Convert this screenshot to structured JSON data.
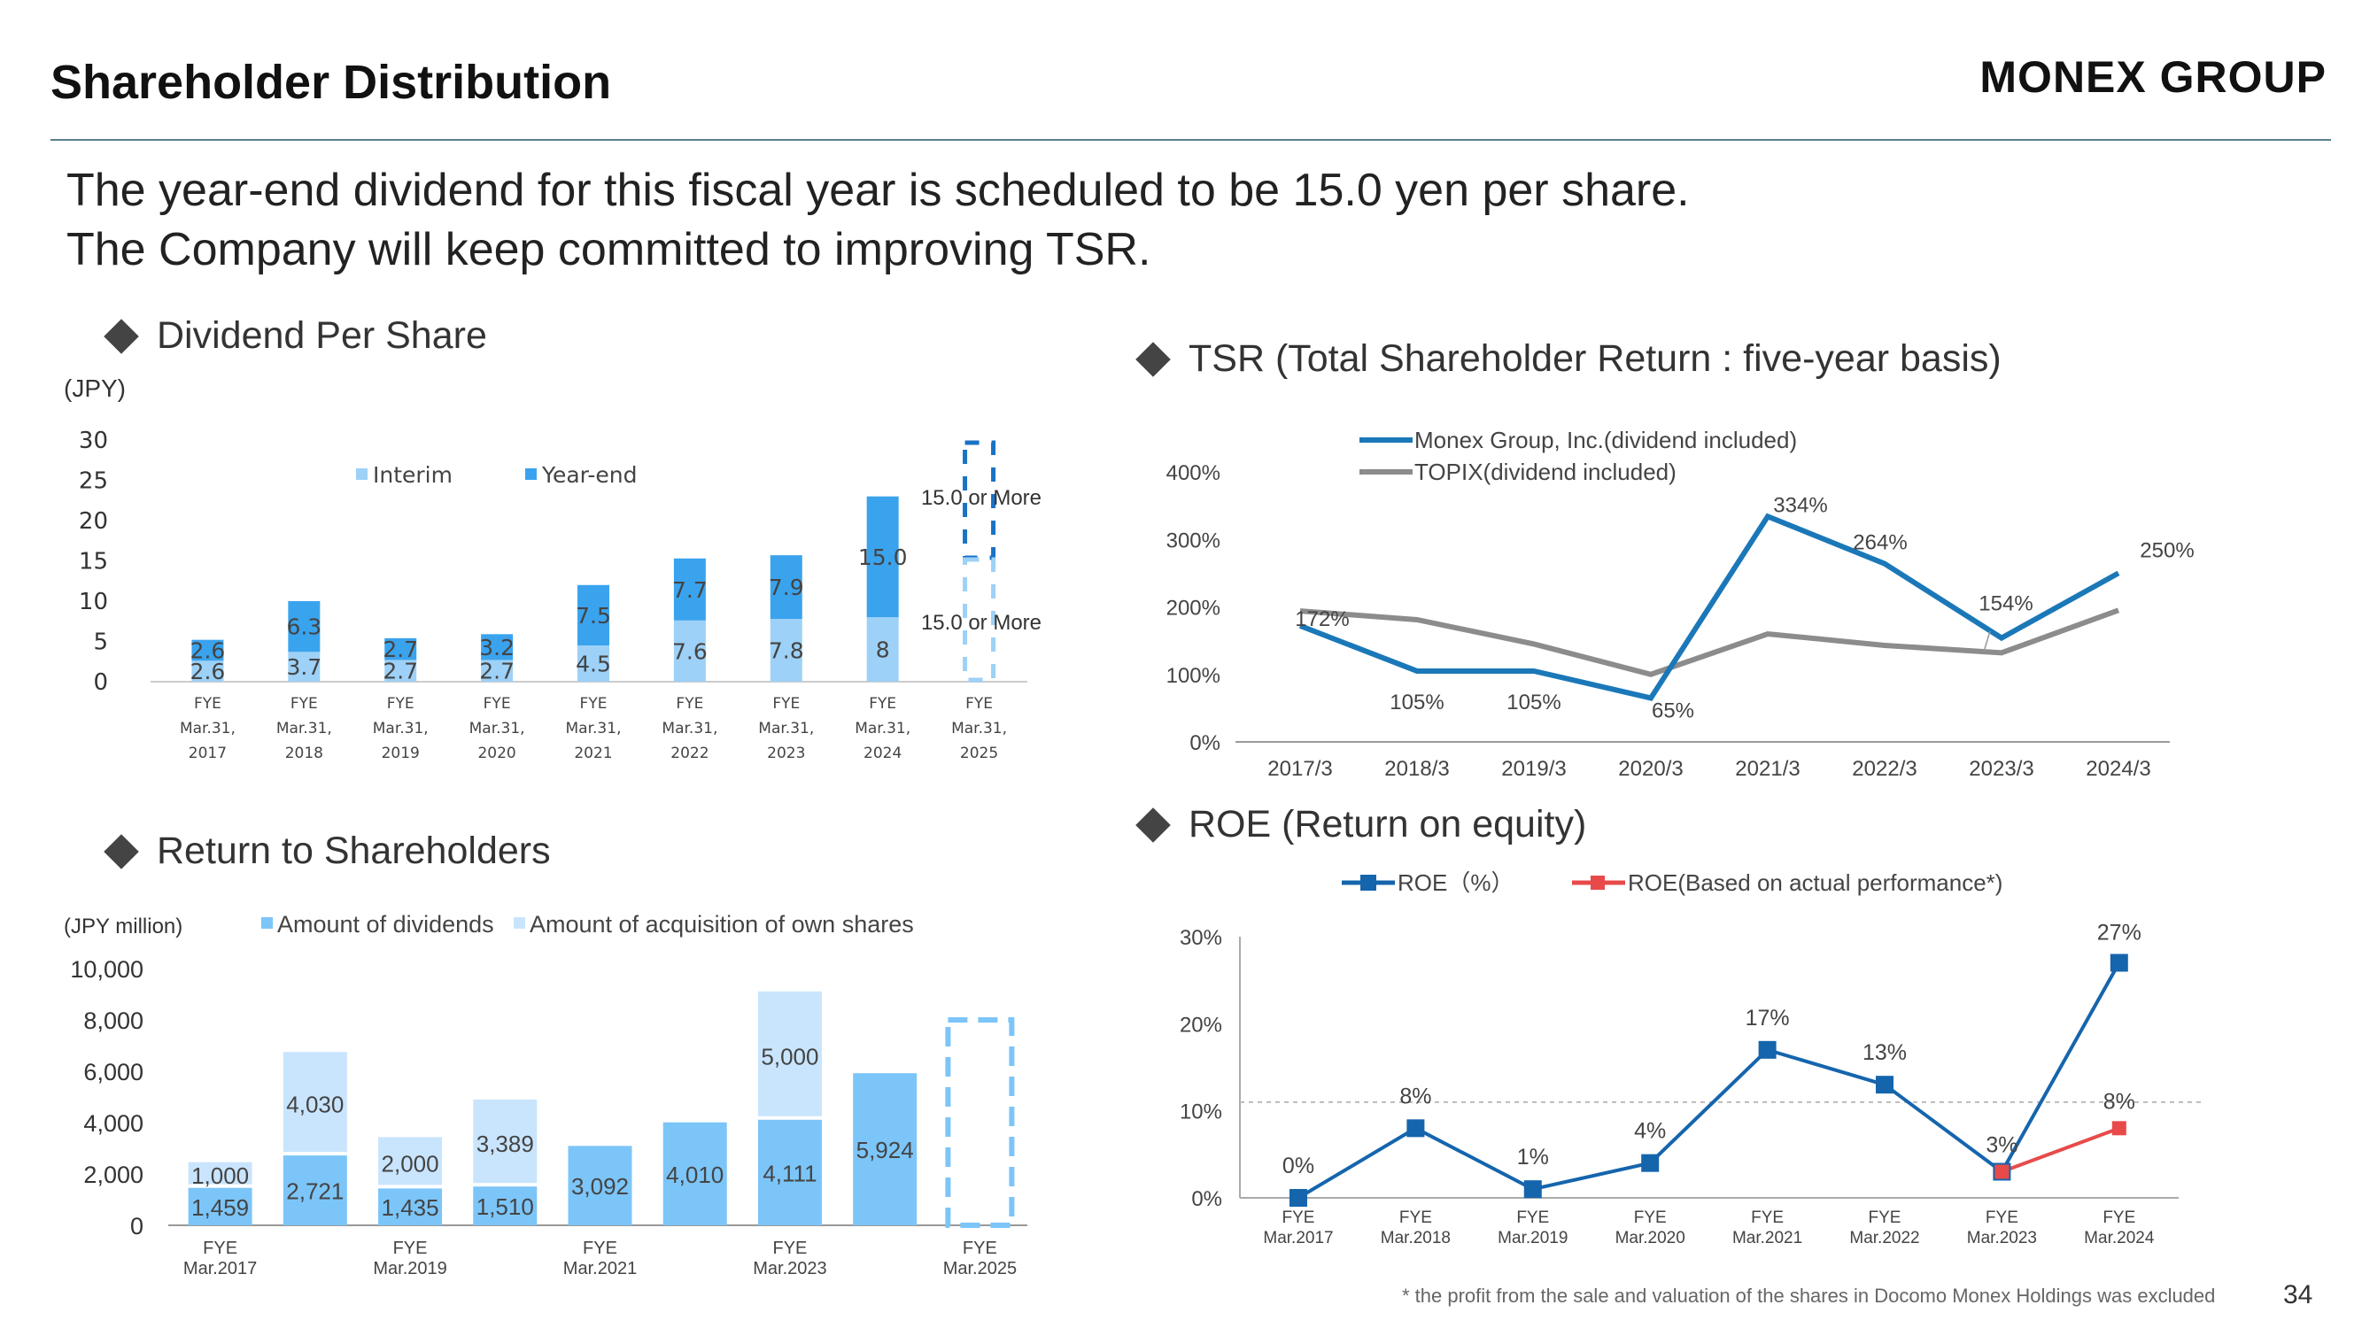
{
  "header": {
    "title": "Shareholder Distribution",
    "logo": "MONEX GROUP",
    "headline_1": "The year-end dividend for this fiscal year is scheduled to be 15.0 yen per share.",
    "headline_2": "The Company will keep committed to improving TSR."
  },
  "sections": {
    "dps": "Dividend Per Share",
    "tsr": "TSR (Total Shareholder Return : five-year basis)",
    "rts": "Return to Shareholders",
    "roe": "ROE (Return on equity)"
  },
  "footer": {
    "note": "* the profit from the sale and valuation of the shares in Docomo Monex Holdings was excluded",
    "page": "34"
  },
  "colors": {
    "interim": "#9dd1f7",
    "yearend": "#3aa3ee",
    "dividends": "#7cc5f8",
    "acquisition": "#c9e5fd",
    "monex": "#1b78b8",
    "topix": "#8c8c8c",
    "roe": "#1565ad",
    "roe_actual": "#e84a4a"
  },
  "chart_data": [
    {
      "type": "bar",
      "id": "dps",
      "ylabel": "(JPY)",
      "ylim": [
        0,
        30
      ],
      "yticks": [
        "30",
        "25",
        "20",
        "15",
        "10",
        "5",
        "0"
      ],
      "categories": [
        [
          "FYE",
          "Mar.31,",
          "2017"
        ],
        [
          "FYE",
          "Mar.31,",
          "2018"
        ],
        [
          "FYE",
          "Mar.31,",
          "2019"
        ],
        [
          "FYE",
          "Mar.31,",
          "2020"
        ],
        [
          "FYE",
          "Mar.31,",
          "2021"
        ],
        [
          "FYE",
          "Mar.31,",
          "2022"
        ],
        [
          "FYE",
          "Mar.31,",
          "2023"
        ],
        [
          "FYE",
          "Mar.31,",
          "2024"
        ],
        [
          "FYE",
          "Mar.31,",
          "2025"
        ]
      ],
      "series": [
        {
          "name": "Interim",
          "values": [
            2.6,
            3.7,
            2.7,
            2.7,
            4.5,
            7.6,
            7.8,
            8,
            null
          ],
          "labels": [
            "2.6",
            "3.7",
            "2.7",
            "2.7",
            "4.5",
            "7.6",
            "7.8",
            "8",
            ""
          ]
        },
        {
          "name": "Year-end",
          "values": [
            2.6,
            6.3,
            2.7,
            3.2,
            7.5,
            7.7,
            7.9,
            15.0,
            null
          ],
          "labels": [
            "2.6",
            "6.3",
            "2.7",
            "3.2",
            "7.5",
            "7.7",
            "7.9",
            "15.0",
            ""
          ]
        }
      ],
      "forecast": {
        "yearend_label": "15.0 or More",
        "interim_label": "15.0 or More"
      },
      "legend": "top"
    },
    {
      "type": "line",
      "id": "tsr",
      "ylim": [
        0,
        400
      ],
      "yticks": [
        "400%",
        "300%",
        "200%",
        "100%",
        "0%"
      ],
      "x": [
        "2017/3",
        "2018/3",
        "2019/3",
        "2020/3",
        "2021/3",
        "2022/3",
        "2023/3",
        "2024/3"
      ],
      "series": [
        {
          "name": "Monex Group, Inc.(dividend included)",
          "values": [
            172,
            105,
            105,
            65,
            334,
            264,
            154,
            250
          ],
          "labels": [
            "172%",
            "105%",
            "105%",
            "65%",
            "334%",
            "264%",
            "154%",
            "250%"
          ]
        },
        {
          "name": "TOPIX(dividend included)",
          "values": [
            194,
            181,
            145,
            100,
            160,
            143,
            132,
            195
          ]
        }
      ],
      "legend": "top-center"
    },
    {
      "type": "bar",
      "id": "return-to-shareholders",
      "ylabel": "(JPY million)",
      "ylim": [
        0,
        10000
      ],
      "yticks": [
        "10,000",
        "8,000",
        "6,000",
        "4,000",
        "2,000",
        "0"
      ],
      "categories": [
        [
          "FYE",
          "Mar.2017"
        ],
        [
          "",
          ""
        ],
        [
          "FYE",
          "Mar.2019"
        ],
        [
          "",
          ""
        ],
        [
          "FYE",
          "Mar.2021"
        ],
        [
          "",
          ""
        ],
        [
          "FYE",
          "Mar.2023"
        ],
        [
          "",
          ""
        ],
        [
          "FYE",
          "Mar.2025"
        ]
      ],
      "series": [
        {
          "name": "Amount of dividends",
          "values": [
            1459,
            2721,
            1435,
            1510,
            3092,
            4010,
            4111,
            5924,
            null
          ],
          "labels": [
            "1,459",
            "2,721",
            "1,435",
            "1,510",
            "3,092",
            "4,010",
            "4,111",
            "5,924",
            ""
          ]
        },
        {
          "name": "Amount of acquisition of own shares",
          "values": [
            1000,
            4030,
            2000,
            3389,
            0,
            0,
            5000,
            0,
            null
          ],
          "labels": [
            "1,000",
            "4,030",
            "2,000",
            "3,389",
            "",
            "",
            "5,000",
            "",
            ""
          ]
        }
      ],
      "forecast_range": 8000,
      "legend": "top"
    },
    {
      "type": "line",
      "id": "roe",
      "ylim": [
        0,
        30
      ],
      "yticks": [
        "30%",
        "20%",
        "10%",
        "0%"
      ],
      "x": [
        [
          "FYE",
          "Mar.2017"
        ],
        [
          "FYE",
          "Mar.2018"
        ],
        [
          "FYE",
          "Mar.2019"
        ],
        [
          "FYE",
          "Mar.2020"
        ],
        [
          "FYE",
          "Mar.2021"
        ],
        [
          "FYE",
          "Mar.2022"
        ],
        [
          "FYE",
          "Mar.2023"
        ],
        [
          "FYE",
          "Mar.2024"
        ]
      ],
      "series": [
        {
          "name": "ROE（%）",
          "values": [
            0,
            8,
            1,
            4,
            17,
            13,
            3,
            27
          ],
          "labels": [
            "0%",
            "8%",
            "1%",
            "4%",
            "17%",
            "13%",
            "3%",
            "27%"
          ]
        },
        {
          "name": "ROE(Based on actual performance*)",
          "values": [
            null,
            null,
            null,
            null,
            null,
            null,
            3,
            8
          ],
          "labels": [
            "",
            "",
            "",
            "",
            "",
            "",
            "",
            "8%"
          ]
        }
      ],
      "reference_line": 11,
      "legend": "top"
    }
  ]
}
